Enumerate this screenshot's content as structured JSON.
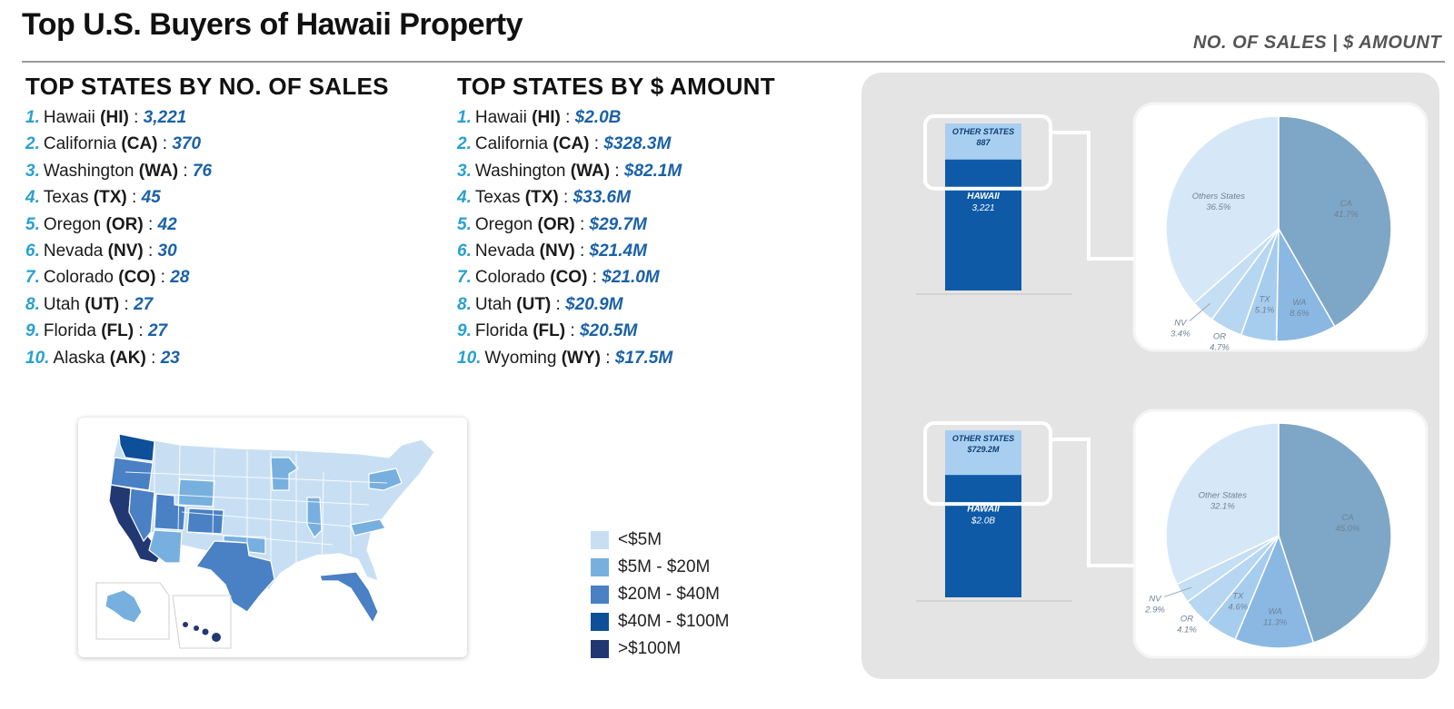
{
  "header": {
    "title": "Top U.S. Buyers of Hawaii Property",
    "subtitle": "NO. OF SALES | $ AMOUNT"
  },
  "sales_list": {
    "heading": "TOP STATES BY NO. OF SALES",
    "items": [
      {
        "rank": "1.",
        "state": "Hawaii",
        "abbr": "(HI)",
        "value": "3,221"
      },
      {
        "rank": "2.",
        "state": "California",
        "abbr": "(CA)",
        "value": "370"
      },
      {
        "rank": "3.",
        "state": "Washington",
        "abbr": "(WA)",
        "value": "76"
      },
      {
        "rank": "4.",
        "state": "Texas",
        "abbr": "(TX)",
        "value": "45"
      },
      {
        "rank": "5.",
        "state": "Oregon",
        "abbr": "(OR)",
        "value": "42"
      },
      {
        "rank": "6.",
        "state": "Nevada",
        "abbr": "(NV)",
        "value": "30"
      },
      {
        "rank": "7.",
        "state": "Colorado",
        "abbr": "(CO)",
        "value": "28"
      },
      {
        "rank": "8.",
        "state": "Utah",
        "abbr": "(UT)",
        "value": "27"
      },
      {
        "rank": "9.",
        "state": "Florida",
        "abbr": "(FL)",
        "value": "27"
      },
      {
        "rank": "10.",
        "state": "Alaska",
        "abbr": "(AK)",
        "value": "23"
      }
    ]
  },
  "amount_list": {
    "heading": "TOP STATES BY $ AMOUNT",
    "items": [
      {
        "rank": "1.",
        "state": "Hawaii",
        "abbr": "(HI)",
        "value": "$2.0B"
      },
      {
        "rank": "2.",
        "state": "California",
        "abbr": "(CA)",
        "value": "$328.3M"
      },
      {
        "rank": "3.",
        "state": "Washington",
        "abbr": "(WA)",
        "value": "$82.1M"
      },
      {
        "rank": "4.",
        "state": "Texas",
        "abbr": "(TX)",
        "value": "$33.6M"
      },
      {
        "rank": "5.",
        "state": "Oregon",
        "abbr": "(OR)",
        "value": "$29.7M"
      },
      {
        "rank": "6.",
        "state": "Nevada",
        "abbr": "(NV)",
        "value": "$21.4M"
      },
      {
        "rank": "7.",
        "state": "Colorado",
        "abbr": "(CO)",
        "value": "$21.0M"
      },
      {
        "rank": "8.",
        "state": "Utah",
        "abbr": "(UT)",
        "value": "$20.9M"
      },
      {
        "rank": "9.",
        "state": "Florida",
        "abbr": "(FL)",
        "value": "$20.5M"
      },
      {
        "rank": "10.",
        "state": "Wyoming",
        "abbr": "(WY)",
        "value": "$17.5M"
      }
    ]
  },
  "map_legend": [
    {
      "label": "<$5M",
      "color": "#c8dff3"
    },
    {
      "label": "$5M - $20M",
      "color": "#77b0de"
    },
    {
      "label": "$20M - $40M",
      "color": "#4a80c4"
    },
    {
      "label": "$40M - $100M",
      "color": "#0d4f99"
    },
    {
      "label": ">$100M",
      "color": "#223872"
    }
  ],
  "map_regions": [
    {
      "state": "CA",
      "bucket": ">$100M"
    },
    {
      "state": "WA",
      "bucket": "$40M - $100M"
    },
    {
      "state": "OR",
      "bucket": "$20M - $40M"
    },
    {
      "state": "NV",
      "bucket": "$20M - $40M"
    },
    {
      "state": "UT",
      "bucket": "$20M - $40M"
    },
    {
      "state": "CO",
      "bucket": "$20M - $40M"
    },
    {
      "state": "TX",
      "bucket": "$20M - $40M"
    },
    {
      "state": "FL",
      "bucket": "$20M - $40M"
    },
    {
      "state": "AZ",
      "bucket": "$5M - $20M"
    },
    {
      "state": "WY",
      "bucket": "$5M - $20M"
    },
    {
      "state": "OK",
      "bucket": "$5M - $20M"
    },
    {
      "state": "IL",
      "bucket": "$5M - $20M"
    },
    {
      "state": "MN",
      "bucket": "$5M - $20M"
    },
    {
      "state": "VA",
      "bucket": "$5M - $20M"
    },
    {
      "state": "NY",
      "bucket": "$5M - $20M"
    },
    {
      "state": "AK",
      "bucket": "$5M - $20M"
    },
    {
      "state": "HI",
      "bucket": ">$100M"
    }
  ],
  "chart_data": [
    {
      "type": "bar",
      "stacked": true,
      "categories": [
        ""
      ],
      "series": [
        {
          "name": "HAWAII",
          "values": [
            3221
          ],
          "label": "3,221",
          "color": "#0e5aa7"
        },
        {
          "name": "OTHER STATES",
          "values": [
            887
          ],
          "label": "887",
          "color": "#a9cff0"
        }
      ]
    },
    {
      "type": "pie",
      "labels": [
        "CA",
        "WA",
        "TX",
        "OR",
        "NV",
        "Others States"
      ],
      "values": [
        41.7,
        8.6,
        5.1,
        4.7,
        3.4,
        36.5
      ],
      "value_labels": [
        "41.7%",
        "8.6%",
        "5.1%",
        "4.7%",
        "3.4%",
        "36.5%"
      ],
      "colors": [
        "#7ea6c6",
        "#8ab8e2",
        "#a7cdee",
        "#b6d6f2",
        "#c4def4",
        "#d6e8f8"
      ]
    },
    {
      "type": "bar",
      "stacked": true,
      "categories": [
        ""
      ],
      "series": [
        {
          "name": "HAWAII",
          "values": [
            2000
          ],
          "label": "$2.0B",
          "color": "#0e5aa7"
        },
        {
          "name": "OTHER STATES",
          "values": [
            729.2
          ],
          "label": "$729.2M",
          "color": "#a9cff0"
        }
      ]
    },
    {
      "type": "pie",
      "labels": [
        "CA",
        "WA",
        "TX",
        "OR",
        "NV",
        "Other States"
      ],
      "values": [
        45.0,
        11.3,
        4.6,
        4.1,
        2.9,
        32.1
      ],
      "value_labels": [
        "45.0%",
        "11.3%",
        "4.6%",
        "4.1%",
        "2.9%",
        "32.1%"
      ],
      "colors": [
        "#7ea6c6",
        "#8ab8e2",
        "#a7cdee",
        "#b6d6f2",
        "#c4def4",
        "#d6e8f8"
      ]
    }
  ]
}
